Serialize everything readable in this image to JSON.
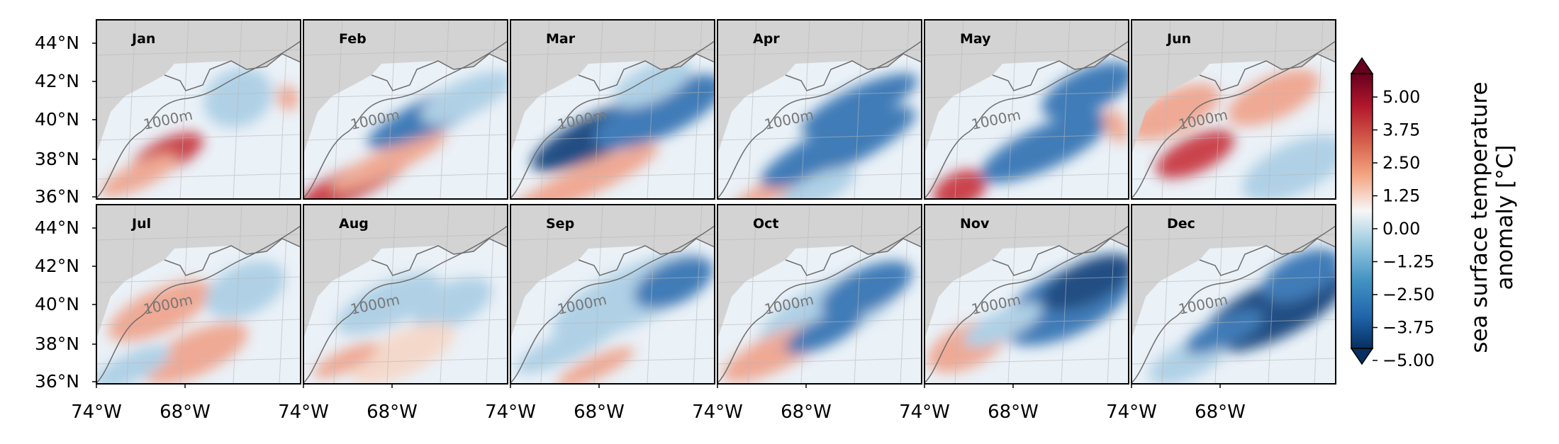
{
  "figure": {
    "panels": [
      {
        "label": "Jan",
        "contour_label": "1000m"
      },
      {
        "label": "Feb",
        "contour_label": "1000m"
      },
      {
        "label": "Mar",
        "contour_label": "1000m"
      },
      {
        "label": "Apr",
        "contour_label": "1000m"
      },
      {
        "label": "May",
        "contour_label": "1000m"
      },
      {
        "label": "Jun",
        "contour_label": "1000m"
      },
      {
        "label": "Jul",
        "contour_label": "1000m"
      },
      {
        "label": "Aug",
        "contour_label": "1000m"
      },
      {
        "label": "Sep",
        "contour_label": "1000m"
      },
      {
        "label": "Oct",
        "contour_label": "1000m"
      },
      {
        "label": "Nov",
        "contour_label": "1000m"
      },
      {
        "label": "Dec",
        "contour_label": "1000m"
      }
    ],
    "lat_ticks": [
      "44°N",
      "42°N",
      "40°N",
      "38°N",
      "36°N"
    ],
    "lon_ticks": [
      "74°W",
      "68°W"
    ],
    "colorbar": {
      "title_line1": "sea surface temperature",
      "title_line2": "anomaly [°C]",
      "ticks": [
        "5.00",
        "3.75",
        "2.50",
        "1.25",
        "0.00",
        "−1.25",
        "−2.50",
        "−3.75",
        "−5.00"
      ],
      "colormap": "RdBu_r",
      "range": [
        -5,
        5
      ],
      "extend": "both"
    },
    "colors": {
      "land": "#d3d3d3",
      "warm": "#b2182b",
      "cool": "#2166ac",
      "neutral": "#f7f7f7",
      "coast_line": "#6e6e6e"
    }
  }
}
